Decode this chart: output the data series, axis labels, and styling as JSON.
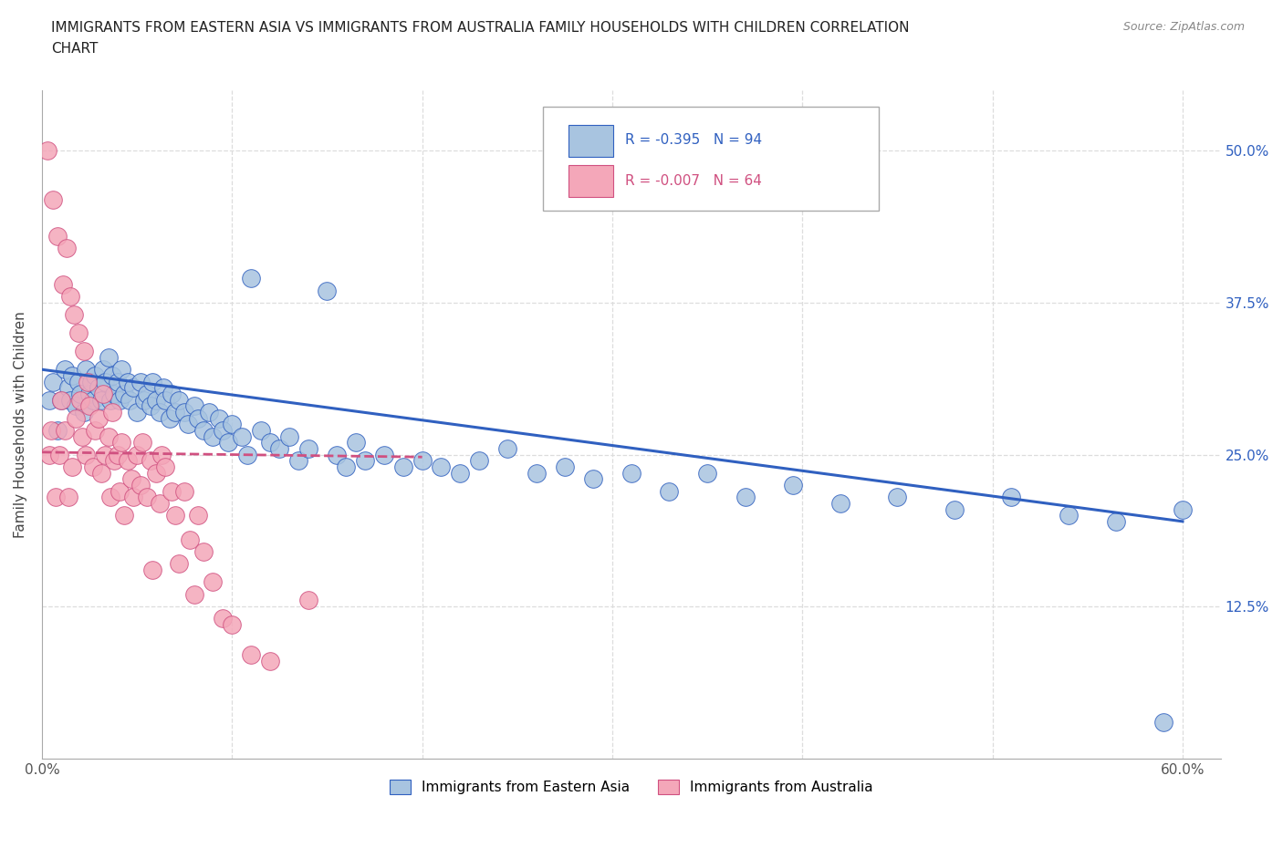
{
  "title": "IMMIGRANTS FROM EASTERN ASIA VS IMMIGRANTS FROM AUSTRALIA FAMILY HOUSEHOLDS WITH CHILDREN CORRELATION\nCHART",
  "source": "Source: ZipAtlas.com",
  "ylabel": "Family Households with Children",
  "xlim": [
    0.0,
    0.62
  ],
  "ylim": [
    0.0,
    0.55
  ],
  "xticks": [
    0.0,
    0.1,
    0.2,
    0.3,
    0.4,
    0.5,
    0.6
  ],
  "yticks": [
    0.0,
    0.125,
    0.25,
    0.375,
    0.5
  ],
  "grid_color": "#dddddd",
  "blue_color": "#a8c4e0",
  "pink_color": "#f4a7b9",
  "blue_line_color": "#3060c0",
  "pink_line_color": "#d05080",
  "R_blue": -0.395,
  "N_blue": 94,
  "R_pink": -0.007,
  "N_pink": 64,
  "blue_scatter_x": [
    0.004,
    0.006,
    0.008,
    0.01,
    0.012,
    0.014,
    0.015,
    0.016,
    0.018,
    0.019,
    0.02,
    0.022,
    0.023,
    0.025,
    0.026,
    0.027,
    0.028,
    0.03,
    0.031,
    0.032,
    0.033,
    0.035,
    0.036,
    0.037,
    0.038,
    0.04,
    0.041,
    0.042,
    0.043,
    0.045,
    0.046,
    0.048,
    0.05,
    0.052,
    0.054,
    0.055,
    0.057,
    0.058,
    0.06,
    0.062,
    0.064,
    0.065,
    0.067,
    0.068,
    0.07,
    0.072,
    0.075,
    0.077,
    0.08,
    0.082,
    0.085,
    0.088,
    0.09,
    0.093,
    0.095,
    0.098,
    0.1,
    0.105,
    0.108,
    0.11,
    0.115,
    0.12,
    0.125,
    0.13,
    0.135,
    0.14,
    0.15,
    0.155,
    0.16,
    0.165,
    0.17,
    0.18,
    0.19,
    0.2,
    0.21,
    0.22,
    0.23,
    0.245,
    0.26,
    0.275,
    0.29,
    0.31,
    0.33,
    0.35,
    0.37,
    0.395,
    0.42,
    0.45,
    0.48,
    0.51,
    0.54,
    0.565,
    0.59,
    0.6
  ],
  "blue_scatter_y": [
    0.295,
    0.31,
    0.27,
    0.295,
    0.32,
    0.305,
    0.295,
    0.315,
    0.29,
    0.31,
    0.3,
    0.285,
    0.32,
    0.3,
    0.31,
    0.295,
    0.315,
    0.305,
    0.295,
    0.32,
    0.31,
    0.33,
    0.295,
    0.315,
    0.3,
    0.31,
    0.295,
    0.32,
    0.3,
    0.31,
    0.295,
    0.305,
    0.285,
    0.31,
    0.295,
    0.3,
    0.29,
    0.31,
    0.295,
    0.285,
    0.305,
    0.295,
    0.28,
    0.3,
    0.285,
    0.295,
    0.285,
    0.275,
    0.29,
    0.28,
    0.27,
    0.285,
    0.265,
    0.28,
    0.27,
    0.26,
    0.275,
    0.265,
    0.25,
    0.395,
    0.27,
    0.26,
    0.255,
    0.265,
    0.245,
    0.255,
    0.385,
    0.25,
    0.24,
    0.26,
    0.245,
    0.25,
    0.24,
    0.245,
    0.24,
    0.235,
    0.245,
    0.255,
    0.235,
    0.24,
    0.23,
    0.235,
    0.22,
    0.235,
    0.215,
    0.225,
    0.21,
    0.215,
    0.205,
    0.215,
    0.2,
    0.195,
    0.03,
    0.205
  ],
  "pink_scatter_x": [
    0.003,
    0.004,
    0.005,
    0.006,
    0.007,
    0.008,
    0.009,
    0.01,
    0.011,
    0.012,
    0.013,
    0.014,
    0.015,
    0.016,
    0.017,
    0.018,
    0.019,
    0.02,
    0.021,
    0.022,
    0.023,
    0.024,
    0.025,
    0.027,
    0.028,
    0.03,
    0.031,
    0.032,
    0.033,
    0.035,
    0.036,
    0.037,
    0.038,
    0.04,
    0.041,
    0.042,
    0.043,
    0.045,
    0.047,
    0.048,
    0.05,
    0.052,
    0.053,
    0.055,
    0.057,
    0.058,
    0.06,
    0.062,
    0.063,
    0.065,
    0.068,
    0.07,
    0.072,
    0.075,
    0.078,
    0.08,
    0.082,
    0.085,
    0.09,
    0.095,
    0.1,
    0.11,
    0.12,
    0.14
  ],
  "pink_scatter_y": [
    0.5,
    0.25,
    0.27,
    0.46,
    0.215,
    0.43,
    0.25,
    0.295,
    0.39,
    0.27,
    0.42,
    0.215,
    0.38,
    0.24,
    0.365,
    0.28,
    0.35,
    0.295,
    0.265,
    0.335,
    0.25,
    0.31,
    0.29,
    0.24,
    0.27,
    0.28,
    0.235,
    0.3,
    0.25,
    0.265,
    0.215,
    0.285,
    0.245,
    0.25,
    0.22,
    0.26,
    0.2,
    0.245,
    0.23,
    0.215,
    0.25,
    0.225,
    0.26,
    0.215,
    0.245,
    0.155,
    0.235,
    0.21,
    0.25,
    0.24,
    0.22,
    0.2,
    0.16,
    0.22,
    0.18,
    0.135,
    0.2,
    0.17,
    0.145,
    0.115,
    0.11,
    0.085,
    0.08,
    0.13
  ],
  "legend_entries": [
    {
      "label": "Immigrants from Eastern Asia",
      "color": "#a8c4e0"
    },
    {
      "label": "Immigrants from Australia",
      "color": "#f4a7b9"
    }
  ]
}
